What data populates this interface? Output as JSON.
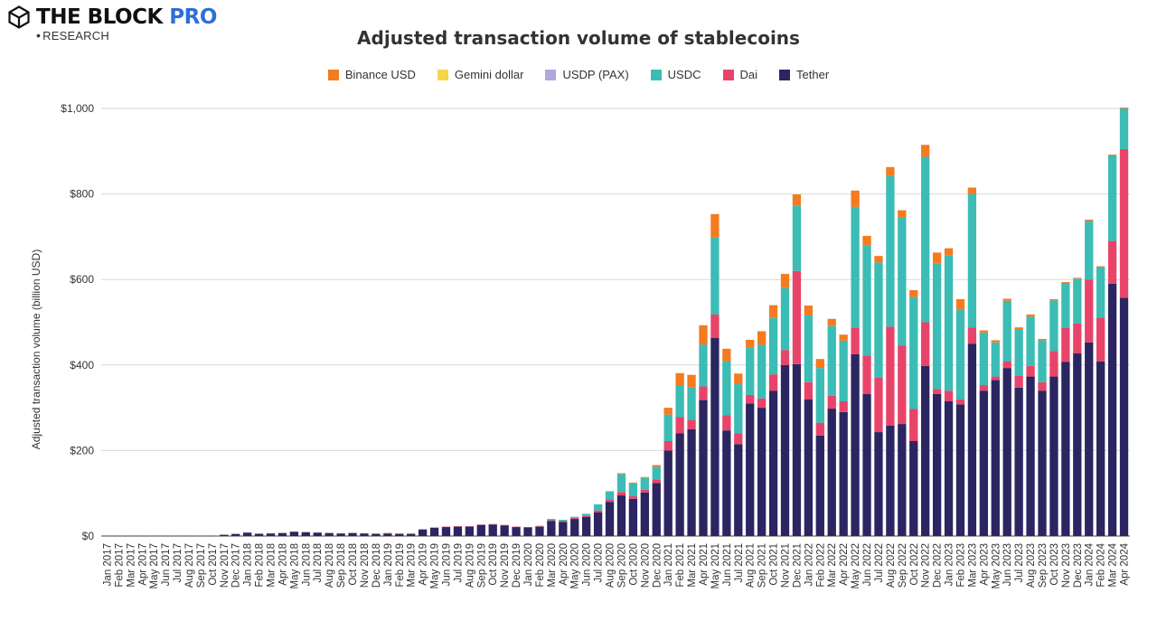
{
  "brand": {
    "name_main": "THE BLOCK",
    "name_pro": "PRO",
    "sub": "RESEARCH",
    "logo_icon": "cube-icon"
  },
  "chart_data": {
    "type": "bar",
    "stacked": true,
    "title": "Adjusted transaction volume of stablecoins",
    "ylabel": "Adjusted transaction volume (billion USD)",
    "xlabel": "",
    "ylim": [
      0,
      1000
    ],
    "yticks": [
      "$0",
      "$200",
      "$400",
      "$600",
      "$800",
      "$1,000"
    ],
    "ytick_values": [
      0,
      200,
      400,
      600,
      800,
      1000
    ],
    "grid": true,
    "legend_position": "top-center",
    "categories": [
      "Jan 2017",
      "Feb 2017",
      "Mar 2017",
      "Apr 2017",
      "May 2017",
      "Jun 2017",
      "Jul 2017",
      "Aug 2017",
      "Sep 2017",
      "Oct 2017",
      "Nov 2017",
      "Dec 2017",
      "Jan 2018",
      "Feb 2018",
      "Mar 2018",
      "Apr 2018",
      "May 2018",
      "Jun 2018",
      "Jul 2018",
      "Aug 2018",
      "Sep 2018",
      "Oct 2018",
      "Nov 2018",
      "Dec 2018",
      "Jan 2019",
      "Feb 2019",
      "Mar 2019",
      "Apr 2019",
      "May 2019",
      "Jun 2019",
      "Jul 2019",
      "Aug 2019",
      "Sep 2019",
      "Oct 2019",
      "Nov 2019",
      "Dec 2019",
      "Jan 2020",
      "Feb 2020",
      "Mar 2020",
      "Apr 2020",
      "May 2020",
      "Jun 2020",
      "Jul 2020",
      "Aug 2020",
      "Sep 2020",
      "Oct 2020",
      "Nov 2020",
      "Dec 2020",
      "Jan 2021",
      "Feb 2021",
      "Mar 2021",
      "Apr 2021",
      "May 2021",
      "Jun 2021",
      "Jul 2021",
      "Aug 2021",
      "Sep 2021",
      "Oct 2021",
      "Nov 2021",
      "Dec 2021",
      "Jan 2022",
      "Feb 2022",
      "Mar 2022",
      "Apr 2022",
      "May 2022",
      "Jun 2022",
      "Jul 2022",
      "Aug 2022",
      "Sep 2022",
      "Oct 2022",
      "Nov 2022",
      "Dec 2022",
      "Jan 2023",
      "Feb 2023",
      "Mar 2023",
      "Apr 2023",
      "May 2023",
      "Jun 2023",
      "Jul 2023",
      "Aug 2023",
      "Sep 2023",
      "Oct 2023",
      "Nov 2023",
      "Dec 2023",
      "Jan 2024",
      "Feb 2024",
      "Mar 2024",
      "Apr 2024"
    ],
    "series": [
      {
        "name": "Tether",
        "color": "#2b2561",
        "values": [
          0.5,
          0.5,
          0.5,
          0.5,
          0.5,
          0.5,
          0.5,
          0.5,
          0.5,
          0.5,
          3,
          5,
          8,
          5,
          6,
          7,
          10,
          9,
          8,
          7,
          6,
          7,
          6,
          5,
          6,
          5,
          5,
          15,
          19,
          21,
          22,
          22,
          26,
          27,
          25,
          21,
          20,
          22,
          35,
          33,
          40,
          45,
          55,
          80,
          95,
          87,
          102,
          124,
          200,
          240,
          250,
          318,
          463,
          247,
          215,
          310,
          300,
          340,
          400,
          402,
          320,
          235,
          298,
          290,
          425,
          332,
          243,
          258,
          262,
          222,
          398,
          332,
          315,
          308,
          450,
          340,
          365,
          393,
          347,
          373,
          340,
          373,
          407,
          427,
          453,
          408,
          590,
          557
        ]
      },
      {
        "name": "Dai",
        "color": "#e8446a",
        "values": [
          0,
          0,
          0,
          0,
          0,
          0,
          0,
          0,
          0,
          0,
          0,
          0,
          0,
          1,
          0.5,
          0.5,
          0.5,
          0.5,
          0.5,
          0.5,
          0.5,
          0.5,
          0.5,
          1,
          1,
          1,
          1,
          1,
          1,
          1,
          1,
          1,
          1,
          1,
          1,
          1,
          1,
          1,
          2,
          2,
          2,
          3,
          5,
          6,
          8,
          6,
          6,
          8,
          22,
          38,
          22,
          32,
          55,
          36,
          25,
          20,
          22,
          38,
          35,
          218,
          40,
          30,
          30,
          25,
          62,
          90,
          127,
          232,
          183,
          75,
          102,
          12,
          25,
          12,
          38,
          13,
          8,
          15,
          28,
          25,
          20,
          60,
          80,
          70,
          147,
          103,
          100,
          348
        ]
      },
      {
        "name": "USDC",
        "color": "#3bbcb5",
        "values": [
          0,
          0,
          0,
          0,
          0,
          0,
          0,
          0,
          0,
          0,
          0,
          0,
          0,
          0,
          0,
          0,
          0,
          0,
          0,
          0,
          0,
          0,
          0,
          0,
          0,
          0,
          0,
          0,
          0,
          0,
          0,
          0,
          0,
          0,
          0,
          0,
          0,
          1,
          3,
          3,
          3,
          4,
          14,
          18,
          42,
          30,
          28,
          30,
          62,
          73,
          75,
          98,
          180,
          126,
          115,
          110,
          125,
          132,
          145,
          153,
          156,
          128,
          163,
          142,
          283,
          258,
          270,
          352,
          300,
          262,
          387,
          293,
          316,
          209,
          312,
          123,
          80,
          142,
          108,
          115,
          98,
          118,
          105,
          105,
          137,
          118,
          200,
          95
        ]
      },
      {
        "name": "USDP (PAX)",
        "color": "#b0a7dc",
        "values": [
          0,
          0,
          0,
          0,
          0,
          0,
          0,
          0,
          0,
          0,
          0,
          0,
          0,
          0,
          0,
          0,
          0,
          0,
          0,
          0,
          0,
          0,
          0,
          0,
          0,
          0,
          0,
          0,
          0,
          0,
          0,
          0,
          0,
          0,
          0,
          0,
          0,
          0,
          0,
          0,
          0,
          0,
          0,
          0,
          0,
          0,
          0,
          0,
          0,
          0,
          0,
          0,
          0,
          0,
          0,
          0,
          0,
          0,
          0,
          0,
          0,
          0,
          0,
          0,
          0,
          0,
          0,
          0,
          0,
          0,
          0,
          0,
          0,
          0,
          0,
          0,
          0,
          0,
          0,
          0,
          0,
          0,
          0,
          0,
          0,
          0,
          0,
          0
        ]
      },
      {
        "name": "Gemini dollar",
        "color": "#f5d54a",
        "values": [
          0,
          0,
          0,
          0,
          0,
          0,
          0,
          0,
          0,
          0,
          0,
          0,
          0,
          0,
          0,
          0,
          0,
          0,
          0,
          0,
          0,
          0,
          0,
          0,
          0,
          0,
          0,
          0,
          0,
          0,
          0,
          0,
          0,
          0,
          0,
          0,
          0,
          0,
          0,
          0,
          0,
          0,
          0,
          0,
          0,
          0,
          0,
          0,
          0,
          0,
          0,
          0,
          0,
          0,
          0,
          0,
          0,
          0,
          0,
          0,
          0,
          0,
          0,
          0,
          0,
          0,
          0,
          0,
          0,
          0,
          0,
          0,
          0,
          0,
          0,
          0,
          0,
          0,
          0,
          0,
          0,
          0,
          0,
          0,
          0,
          0,
          0,
          0
        ]
      },
      {
        "name": "Binance USD",
        "color": "#f47b20",
        "values": [
          0,
          0,
          0,
          0,
          0,
          0,
          0,
          0,
          0,
          0,
          0,
          0,
          0,
          0,
          0,
          0,
          0,
          0,
          0,
          0,
          0,
          0,
          0,
          0,
          0,
          0,
          0,
          0,
          0,
          0,
          0,
          0,
          0,
          0,
          0,
          0,
          0,
          0,
          0,
          0,
          0,
          0,
          0,
          1,
          2,
          2,
          2,
          4,
          16,
          30,
          30,
          45,
          55,
          29,
          25,
          19,
          32,
          30,
          33,
          26,
          23,
          21,
          17,
          14,
          38,
          22,
          15,
          21,
          17,
          16,
          28,
          26,
          17,
          25,
          15,
          5,
          5,
          5,
          5,
          5,
          3,
          3,
          2,
          2,
          3,
          2,
          2,
          2
        ]
      }
    ]
  }
}
